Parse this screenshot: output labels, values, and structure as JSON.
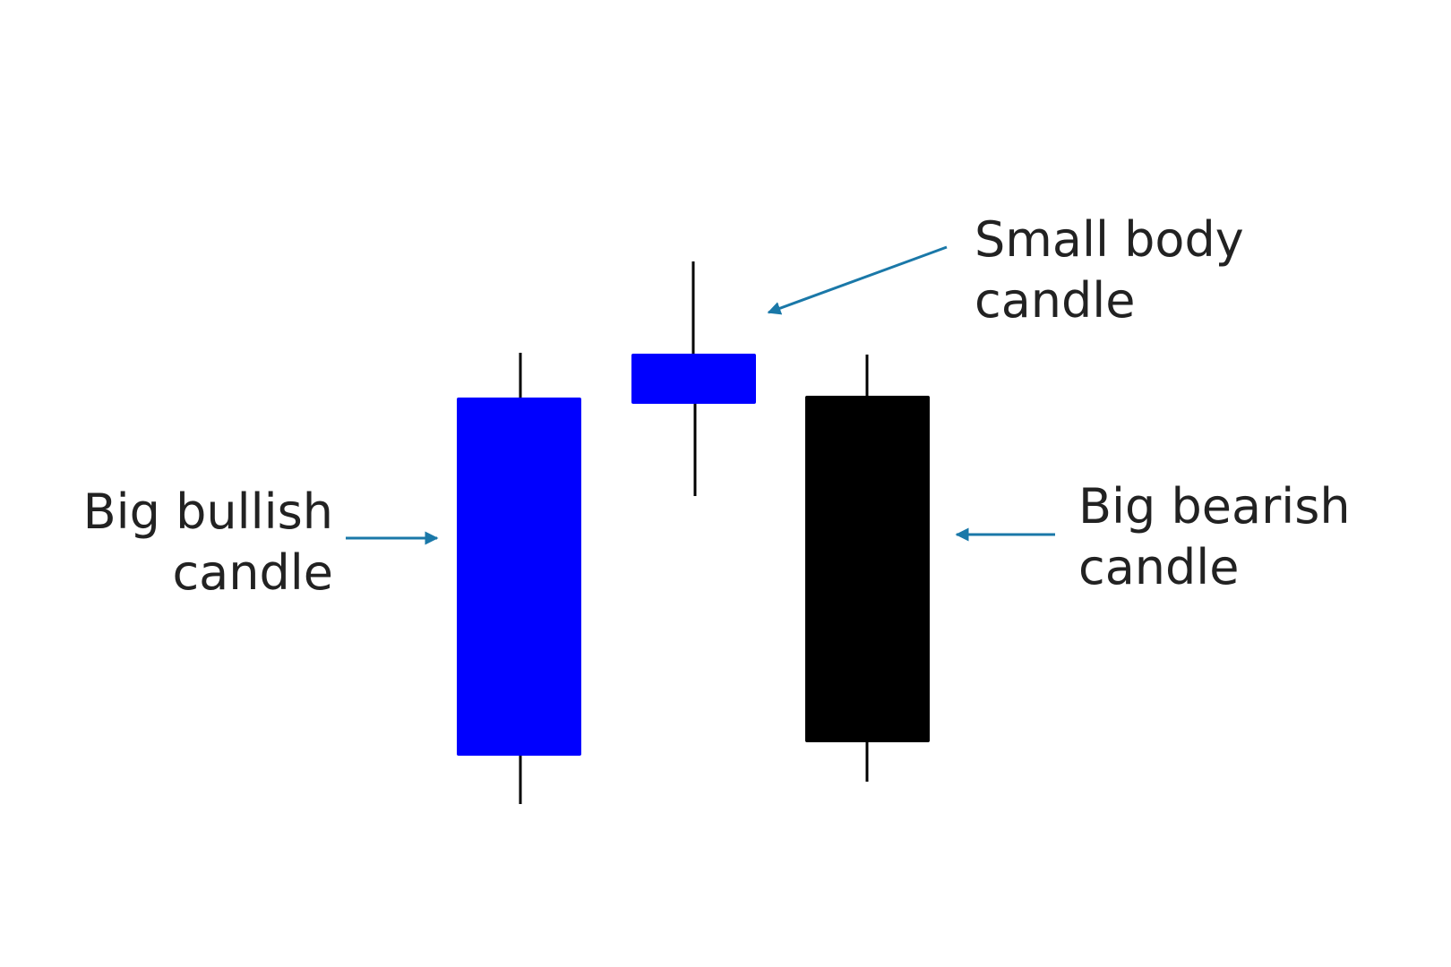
{
  "labels": {
    "bullish": "Big bullish\ncandle",
    "small_body": "Small body\ncandle",
    "bearish": "Big bearish\ncandle"
  },
  "colors": {
    "bullish_body": "#0000ff",
    "small_body": "#0000ff",
    "bearish_body": "#000000",
    "wick": "#000000",
    "arrow": "#1a78a8",
    "text": "#222222",
    "background": "#ffffff"
  }
}
